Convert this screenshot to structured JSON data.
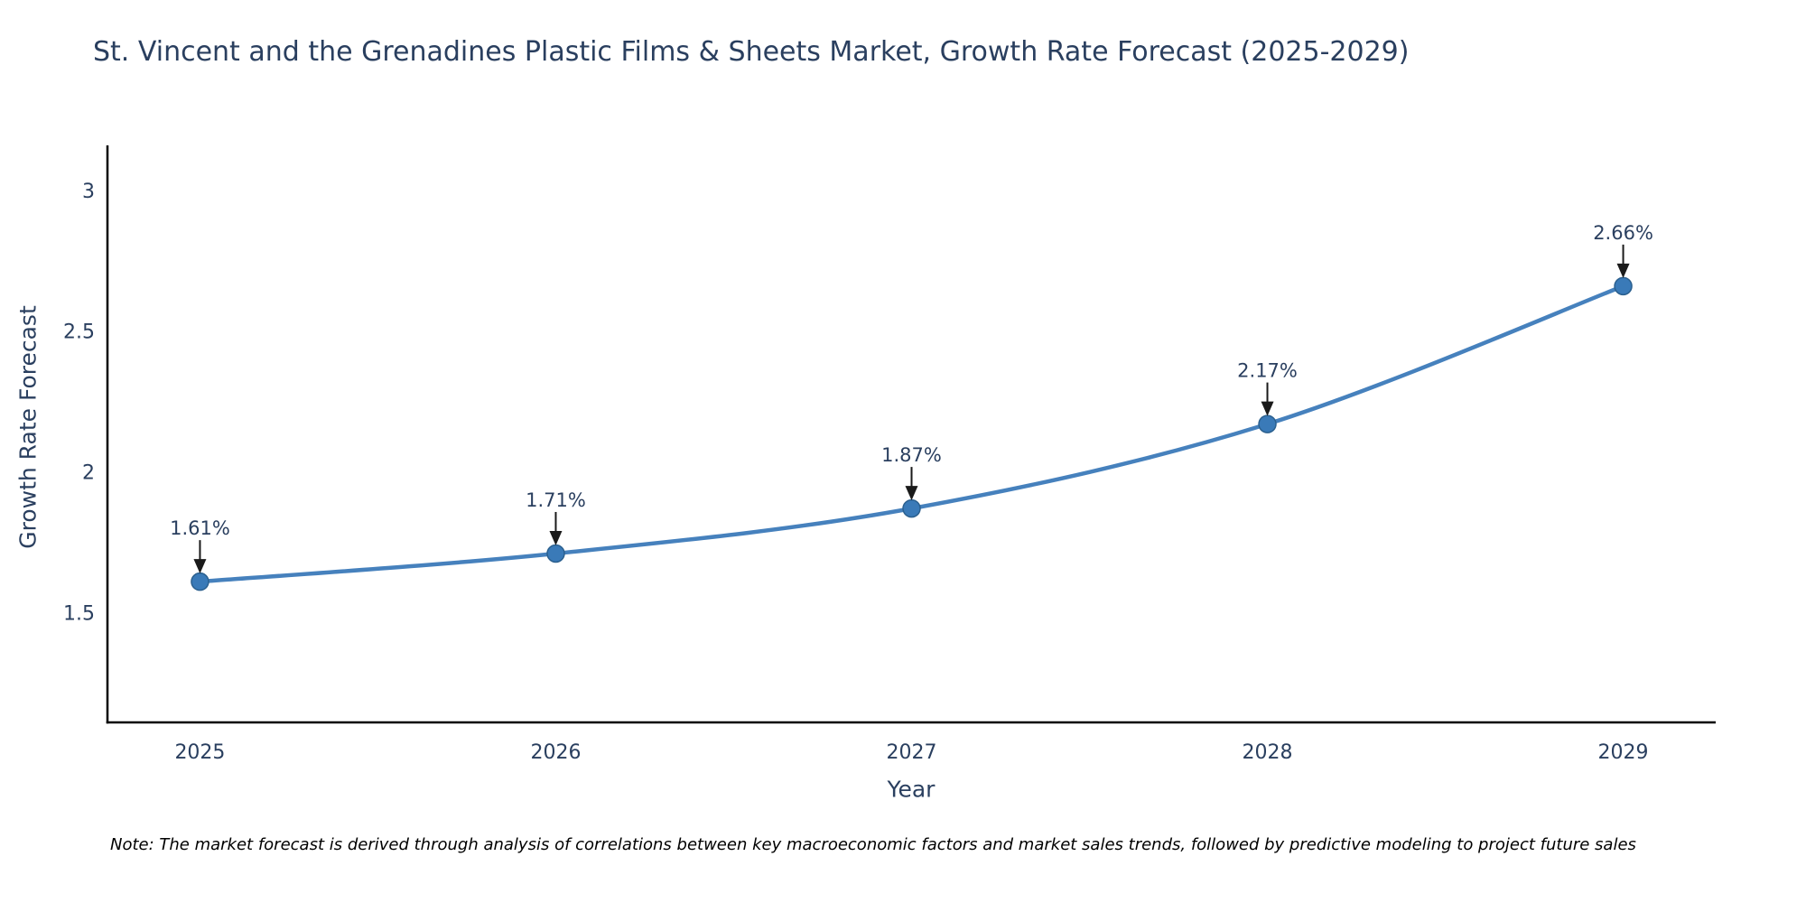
{
  "note": "Note: The market forecast is derived through analysis of correlations between key macroeconomic factors and market sales trends, followed by predictive modeling to project future sales",
  "chart_data": {
    "type": "line",
    "title": "St. Vincent and the Grenadines Plastic Films & Sheets Market, Growth Rate Forecast (2025-2029)",
    "xlabel": "Year",
    "ylabel": "Growth Rate Forecast",
    "categories": [
      2025,
      2026,
      2027,
      2028,
      2029
    ],
    "values": [
      1.61,
      1.71,
      1.87,
      2.17,
      2.66
    ],
    "point_labels": [
      "1.61%",
      "1.71%",
      "1.87%",
      "2.17%",
      "2.66%"
    ],
    "yticks": [
      1.5,
      2,
      2.5,
      3
    ],
    "ylim": [
      1.11,
      3.16
    ],
    "xlim": [
      2024.74,
      2029.26
    ],
    "grid": false,
    "legend": "none",
    "line_shape": "spline",
    "colors": {
      "line": "#4681bd",
      "marker_fill": "#3a7ab8",
      "marker_edge": "#2b608f",
      "text": "#2a3f5f",
      "axis": "#000000",
      "arrow": "#1a1a1a",
      "note_text": "#000000",
      "background": "#ffffff"
    }
  }
}
